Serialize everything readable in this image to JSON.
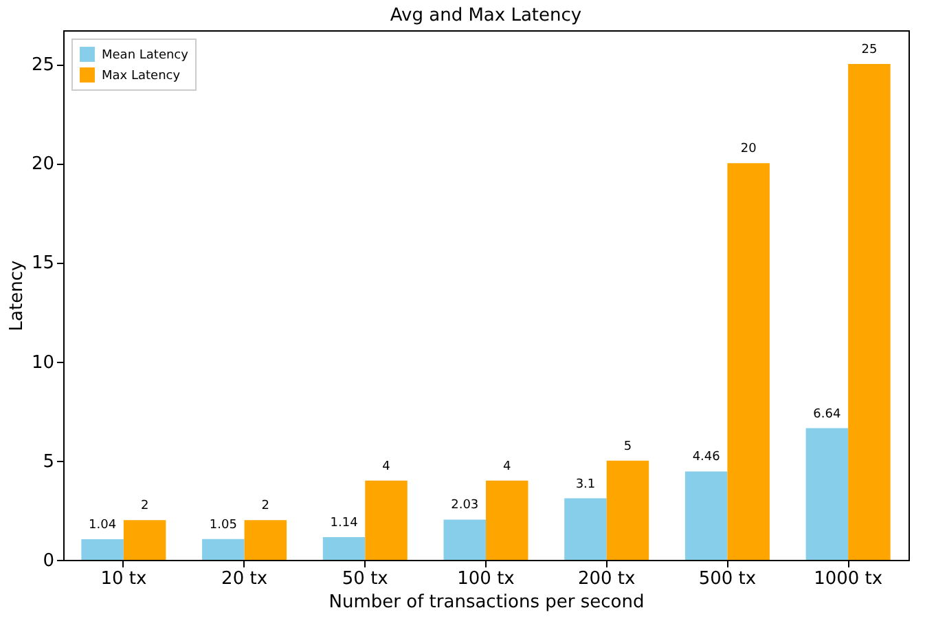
{
  "chart_data": {
    "type": "bar",
    "title": "Avg and Max Latency",
    "xlabel": "Number of transactions per second",
    "ylabel": "Latency",
    "categories": [
      "10 tx",
      "20 tx",
      "50 tx",
      "100 tx",
      "200 tx",
      "500 tx",
      "1000 tx"
    ],
    "series": [
      {
        "name": "Mean Latency",
        "color": "#87ceeb",
        "values": [
          1.04,
          1.05,
          1.14,
          2.03,
          3.1,
          4.46,
          6.64
        ]
      },
      {
        "name": "Max Latency",
        "color": "#ffa500",
        "values": [
          2,
          2,
          4,
          4,
          5,
          20,
          25
        ]
      }
    ],
    "ylim": [
      0,
      26.7
    ],
    "yticks": [
      0,
      5,
      10,
      15,
      20,
      25
    ],
    "data_labels": true,
    "legend": "top left"
  }
}
